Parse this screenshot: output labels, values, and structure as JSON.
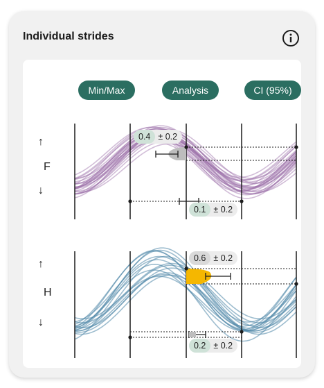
{
  "card": {
    "title": "Individual strides"
  },
  "icons": {
    "info": "info-icon"
  },
  "columns": {
    "minmax": "Min/Max",
    "analysis": "Analysis",
    "ci": "CI (95%)"
  },
  "rows": [
    {
      "label": "F",
      "arrow_up": "↑",
      "arrow_down": "↓",
      "stat_top": {
        "value": "0.4",
        "pm": "± 0.2"
      },
      "stat_bottom": {
        "value": "0.1",
        "pm": "± 0.2"
      }
    },
    {
      "label": "H",
      "arrow_up": "↑",
      "arrow_down": "↓",
      "stat_top": {
        "value": "0.6",
        "pm": "± 0.2"
      },
      "stat_bottom": {
        "value": "0.2",
        "pm": "± 0.2"
      }
    }
  ],
  "colors": {
    "pill": "#2b6e61",
    "f_curves": "#9b6fa8",
    "h_curves": "#4f86a8",
    "highlight_gray": "#bdbdbd",
    "highlight_yellow": "#f5b700"
  }
}
